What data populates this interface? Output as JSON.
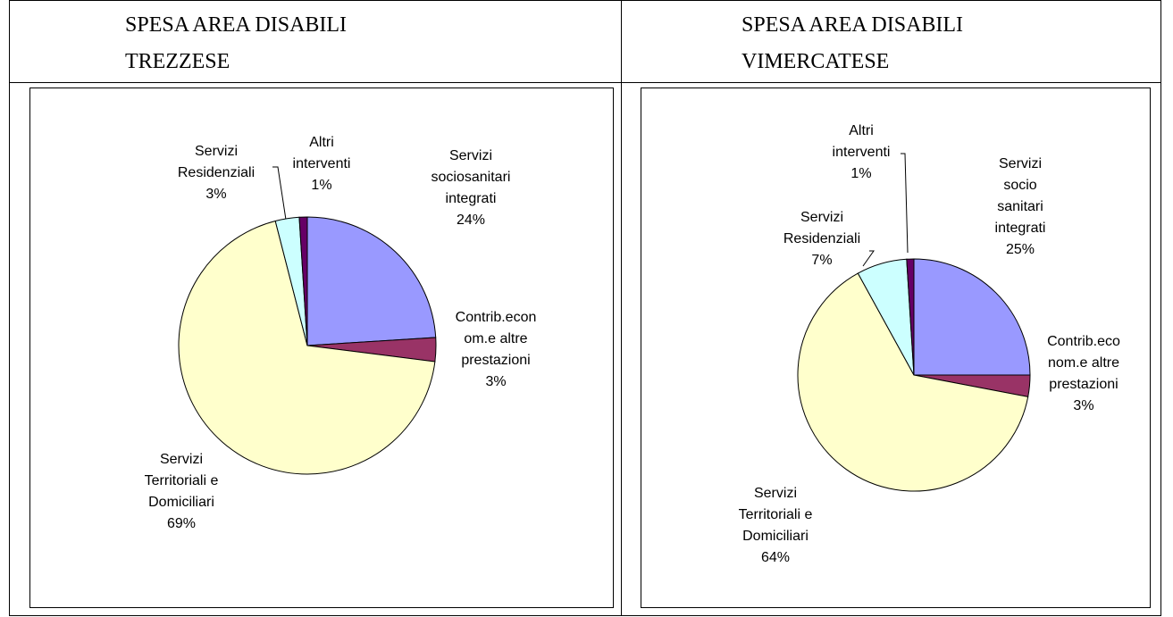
{
  "chart_data": [
    {
      "type": "pie",
      "title": "SPESA AREA DISABILI\nTREZZESE",
      "categories": [
        "Servizi\nsociosanitari\nintegrati",
        "Contrib.econ\nom.e altre\nprestazioni",
        "Servizi\nTerritoriali e\nDomiciliari",
        "Servizi\nResidenziali",
        "Altri\ninterventi"
      ],
      "values": [
        24,
        3,
        69,
        3,
        1
      ],
      "value_labels": [
        "24%",
        "3%",
        "69%",
        "3%",
        "1%"
      ],
      "colors": [
        "#9999ff",
        "#993366",
        "#ffffcc",
        "#ccffff",
        "#660066"
      ]
    },
    {
      "type": "pie",
      "title": "SPESA AREA DISABILI\nVIMERCATESE",
      "categories": [
        "Servizi\nsocio\nsanitari\nintegrati",
        "Contrib.eco\nnom.e altre\nprestazioni",
        "Servizi\nTerritoriali e\nDomiciliari",
        "Servizi\nResidenziali",
        "Altri\ninterventi"
      ],
      "values": [
        25,
        3,
        64,
        7,
        1
      ],
      "value_labels": [
        "25%",
        "3%",
        "64%",
        "7%",
        "1%"
      ],
      "colors": [
        "#9999ff",
        "#993366",
        "#ffffcc",
        "#ccffff",
        "#660066"
      ]
    }
  ]
}
